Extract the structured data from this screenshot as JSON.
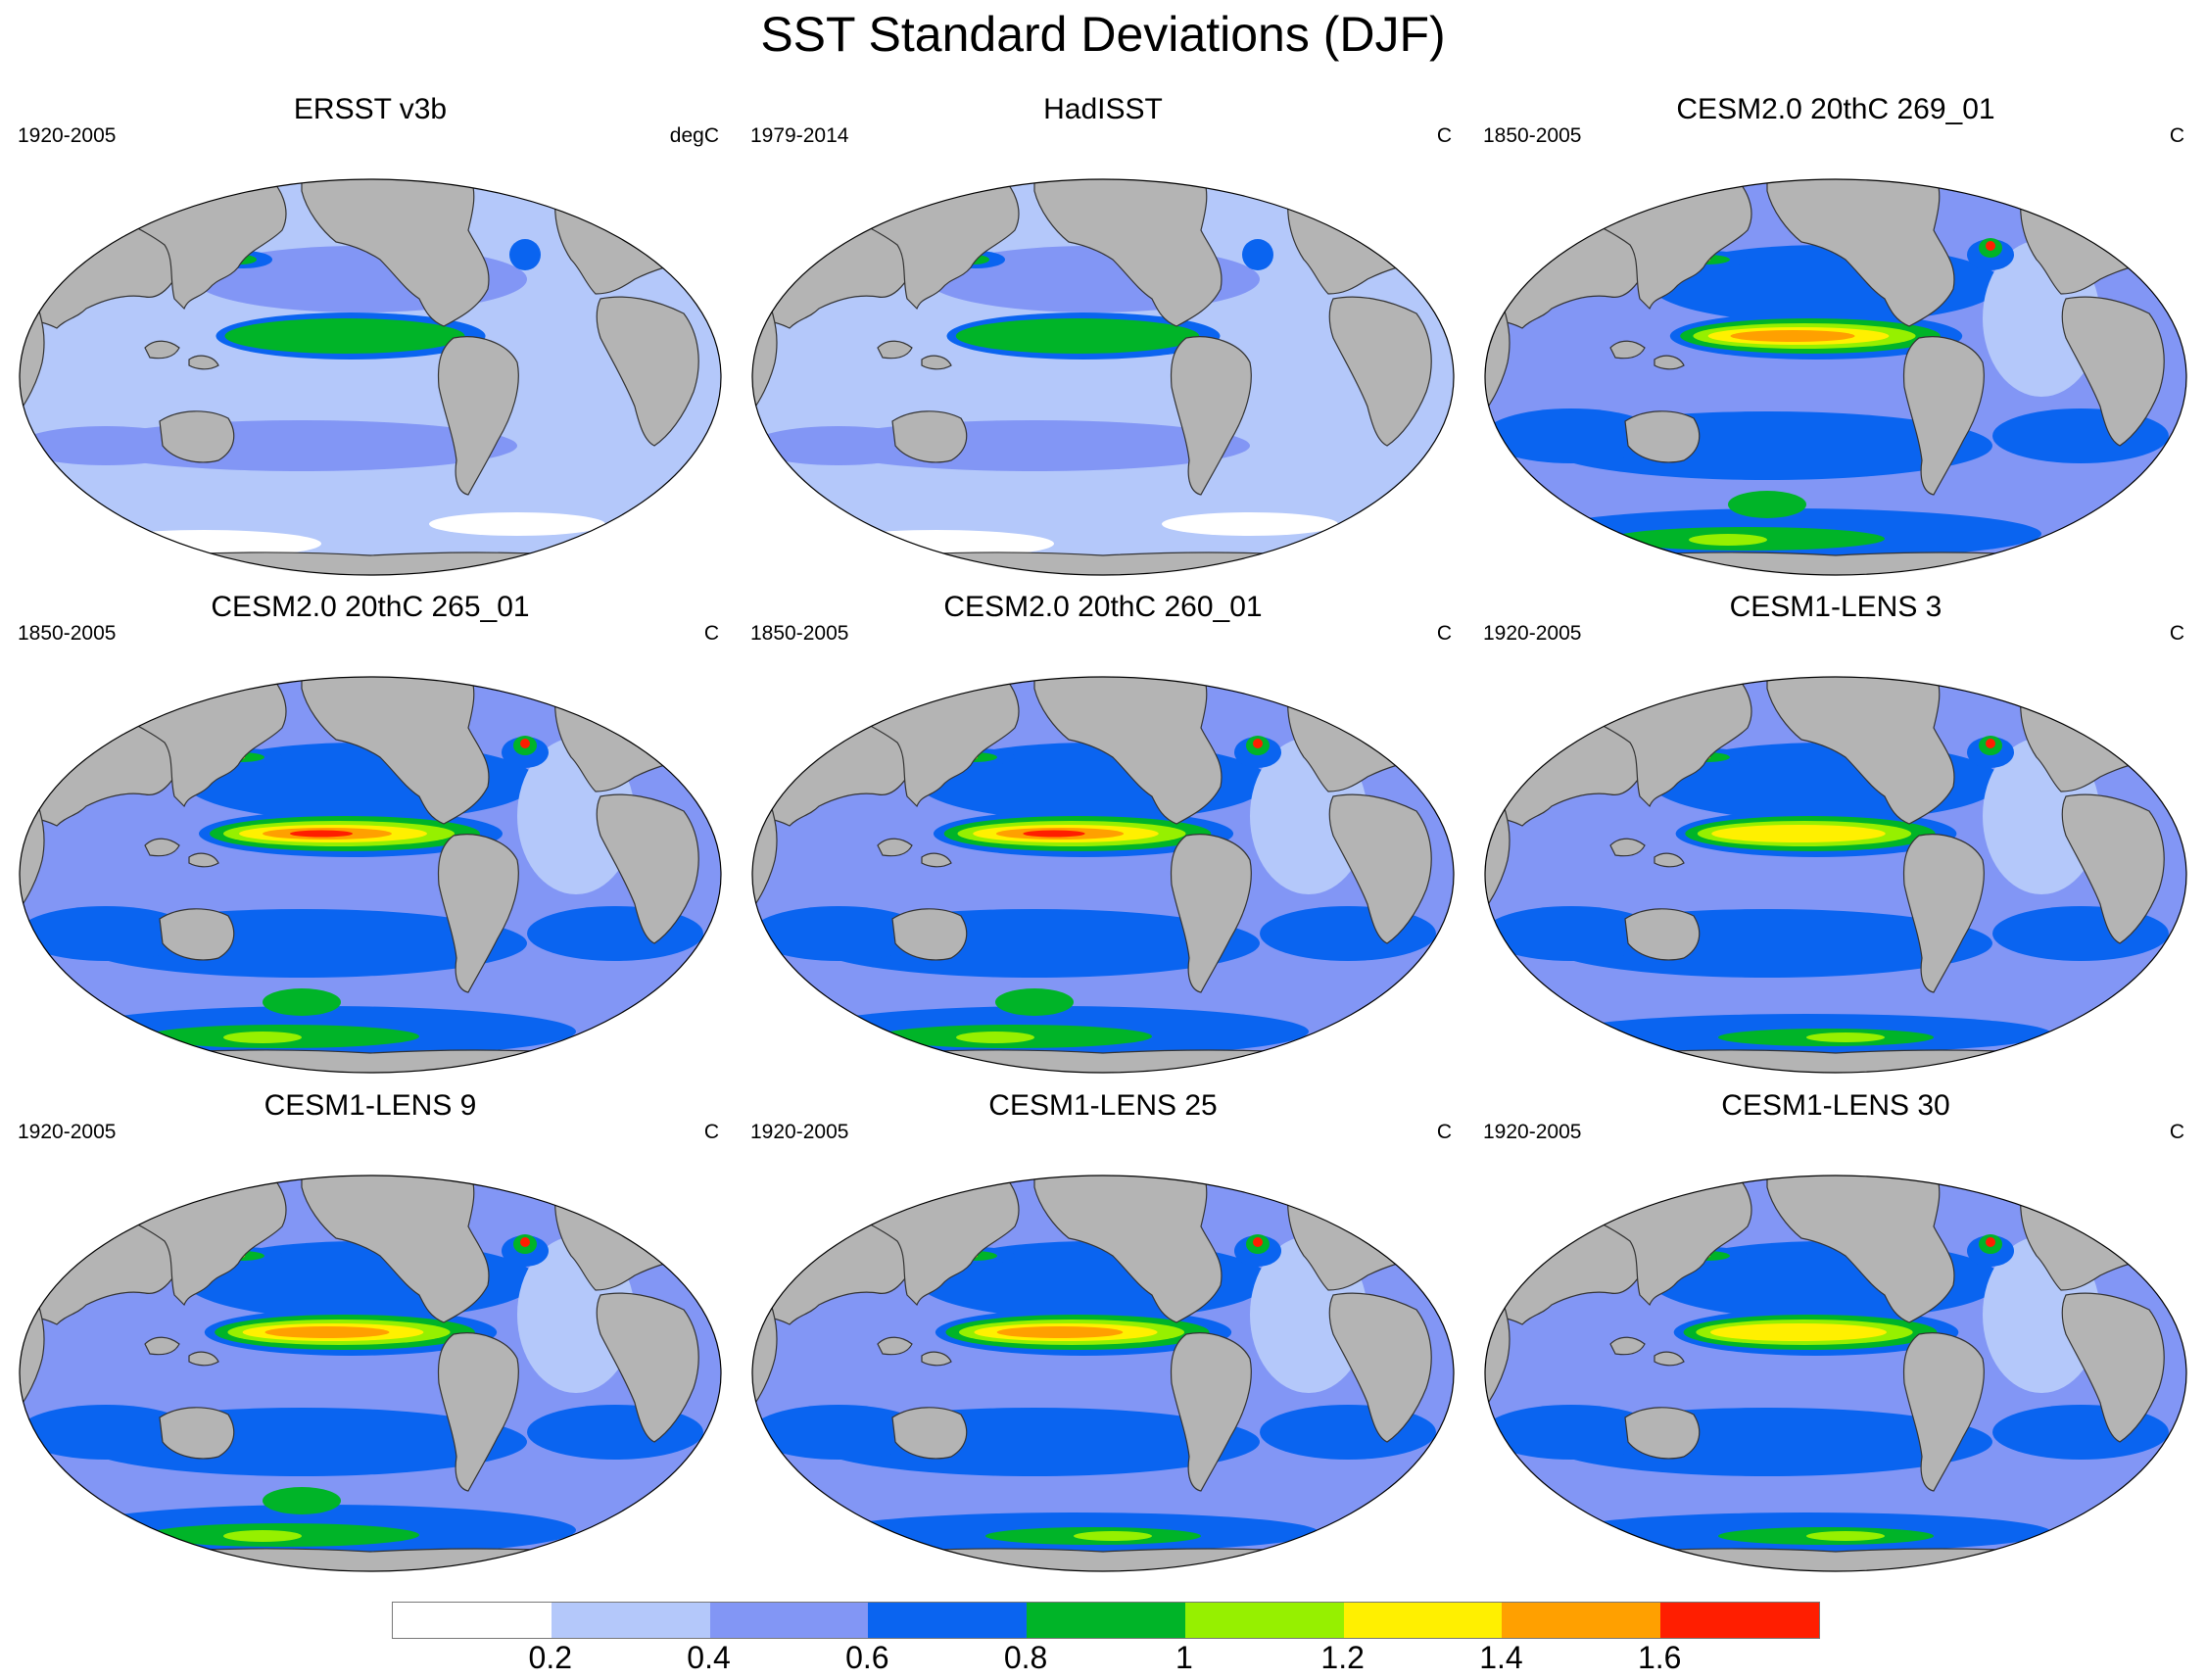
{
  "title": "SST Standard Deviations (DJF)",
  "panels": [
    {
      "title": "ERSST v3b",
      "years": "1920-2005",
      "units": "degC",
      "peak": "green",
      "nino_strength": 0.55,
      "ocean_base": "low",
      "southern_ocean": "light",
      "north_atlantic": "weak"
    },
    {
      "title": "HadISST",
      "years": "1979-2014",
      "units": "C",
      "peak": "green",
      "nino_strength": 0.6,
      "ocean_base": "low",
      "southern_ocean": "light",
      "north_atlantic": "weak"
    },
    {
      "title": "CESM2.0 20thC 269_01",
      "years": "1850-2005",
      "units": "C",
      "peak": "orange",
      "nino_strength": 0.85,
      "ocean_base": "mid",
      "southern_ocean": "strong",
      "north_atlantic": "strong"
    },
    {
      "title": "CESM2.0 20thC 265_01",
      "years": "1850-2005",
      "units": "C",
      "peak": "red",
      "nino_strength": 1.0,
      "ocean_base": "mid",
      "southern_ocean": "strong",
      "north_atlantic": "strong"
    },
    {
      "title": "CESM2.0 20thC 260_01",
      "years": "1850-2005",
      "units": "C",
      "peak": "red",
      "nino_strength": 0.95,
      "ocean_base": "mid",
      "southern_ocean": "strong",
      "north_atlantic": "strong"
    },
    {
      "title": "CESM1-LENS 3",
      "years": "1920-2005",
      "units": "C",
      "peak": "yellow",
      "nino_strength": 0.7,
      "ocean_base": "mid",
      "southern_ocean": "medium",
      "north_atlantic": "strong"
    },
    {
      "title": "CESM1-LENS 9",
      "years": "1920-2005",
      "units": "C",
      "peak": "orange",
      "nino_strength": 0.85,
      "ocean_base": "mid",
      "southern_ocean": "strong",
      "north_atlantic": "strong"
    },
    {
      "title": "CESM1-LENS 25",
      "years": "1920-2005",
      "units": "C",
      "peak": "orange",
      "nino_strength": 0.9,
      "ocean_base": "mid",
      "southern_ocean": "medium",
      "north_atlantic": "strong"
    },
    {
      "title": "CESM1-LENS 30",
      "years": "1920-2005",
      "units": "C",
      "peak": "yellow",
      "nino_strength": 0.75,
      "ocean_base": "mid",
      "southern_ocean": "medium",
      "north_atlantic": "strong"
    }
  ],
  "colorbar": {
    "colors": [
      "#ffffff",
      "#b4c8fa",
      "#8296f5",
      "#0a64f0",
      "#00b428",
      "#96f000",
      "#fff000",
      "#ffa000",
      "#ff1e00"
    ],
    "labels": [
      "0.2",
      "0.4",
      "0.6",
      "0.8",
      "1",
      "1.2",
      "1.4",
      "1.6"
    ]
  },
  "colors": {
    "land": "#b4b4b4",
    "coast": "#333333"
  }
}
